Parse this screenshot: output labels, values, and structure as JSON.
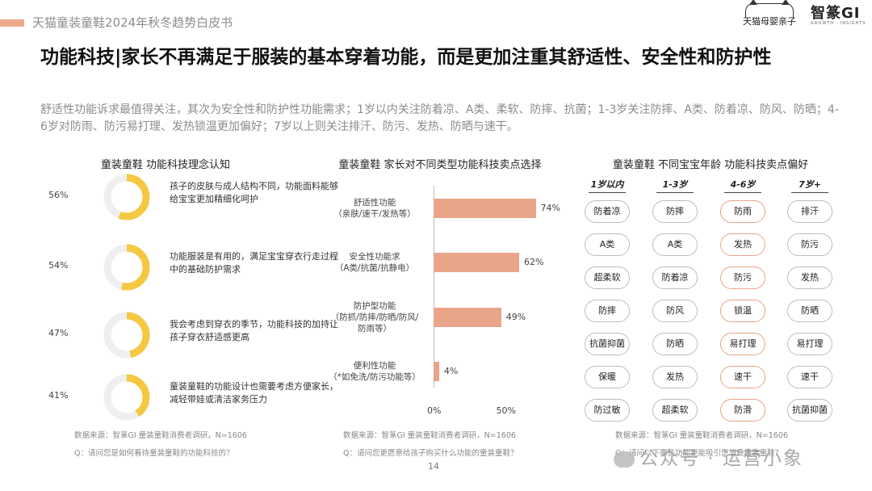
{
  "header": {
    "report_title": "天猫童装童鞋2024年秋冬趋势白皮书",
    "brand_left": "天猫母婴亲子",
    "brand_right": "智篆GI",
    "brand_right_sub": "GROWTH · INSIGHTS"
  },
  "headline": "功能科技|家长不再满足于服装的基本穿着功能，而是更加注重其舒适性、安全性和防护性",
  "summary": "舒适性功能诉求最值得关注，其次为安全性和防护性功能需求；1岁以内关注防着凉、A类、柔软、防摔、抗菌；1-3岁关注防摔、A类、防着凉、防风、防晒；4-6岁对防雨、防污易打理、发热锁温更加偏好；7岁以上则关注排汗、防污、发热、防晒与速干。",
  "chart_data": [
    {
      "type": "pie",
      "title": "童装童鞋 功能科技理念认知",
      "items": [
        {
          "value": 56,
          "label": "56%",
          "text": "孩子的皮肤与成人结构不同，功能面料能够给宝宝更加精细化呵护"
        },
        {
          "value": 54,
          "label": "54%",
          "text": "功能服装是有用的，满足宝宝穿衣行走过程中的基础防护需求"
        },
        {
          "value": 47,
          "label": "47%",
          "text": "我会考虑到穿衣的季节，功能科技的加持让孩子穿衣舒适感更高"
        },
        {
          "value": 41,
          "label": "41%",
          "text": "童装童鞋的功能设计也需要考虑方便家长，减轻带娃或清洁家务压力"
        }
      ],
      "color": "#f5c842",
      "track_color": "#efefef"
    },
    {
      "type": "bar",
      "title": "童装童鞋 家长对不同类型功能科技卖点选择",
      "categories": [
        [
          "舒适性功能",
          "（亲肤/速干/发热等）"
        ],
        [
          "安全性功能求",
          "（A类/抗菌/抗静电）"
        ],
        [
          "防护型功能",
          "（防抓/防摔/防晒/防风/",
          "防雨等）"
        ],
        [
          "便利性功能",
          "（*如免洗/防污功能等）"
        ]
      ],
      "values": [
        74,
        62,
        49,
        4
      ],
      "value_labels": [
        "74%",
        "62%",
        "49%",
        "4%"
      ],
      "xlim": [
        0,
        100
      ],
      "ticks": [
        "0%",
        "50%"
      ],
      "color": "#e9a48a"
    },
    {
      "type": "table",
      "title": "童装童鞋 不同宝宝年龄 功能科技卖点偏好",
      "columns": [
        "1岁以内",
        "1-3岁",
        "4-6岁",
        "7岁+"
      ],
      "rows": [
        [
          "防着凉",
          "防摔",
          "防雨",
          "排汗"
        ],
        [
          "A类",
          "A类",
          "发热",
          "防污"
        ],
        [
          "超柔软",
          "防着凉",
          "防污",
          "发热"
        ],
        [
          "防摔",
          "防风",
          "锁温",
          "防晒"
        ],
        [
          "抗菌抑菌",
          "防晒",
          "易打理",
          "易打理"
        ],
        [
          "保暖",
          "发热",
          "速干",
          "速干"
        ],
        [
          "防过敏",
          "超柔软",
          "防滑",
          "抗菌抑菌"
        ]
      ],
      "highlight_column": 2,
      "highlight_color": "#e9a48a"
    }
  ],
  "footer": {
    "source1": "数据来源：智篆GI 童装童鞋消费者调研，N=1606",
    "question1": "Q：请问您是如何看待童装童鞋的功能科技的？",
    "source2": "数据来源：智篆GI 童装童鞋消费者调研，N=1606",
    "question2": "Q：请问您更愿意给孩子购买什么功能的童装童鞋？",
    "source3": "数据来源：智篆GI 童装童鞋消费者调研，N=1606",
    "question3": "Q：请问以下哪些功能更能吸引您消费童装童鞋？",
    "page_number": "14",
    "watermark": "公众号 · 运营小象"
  }
}
